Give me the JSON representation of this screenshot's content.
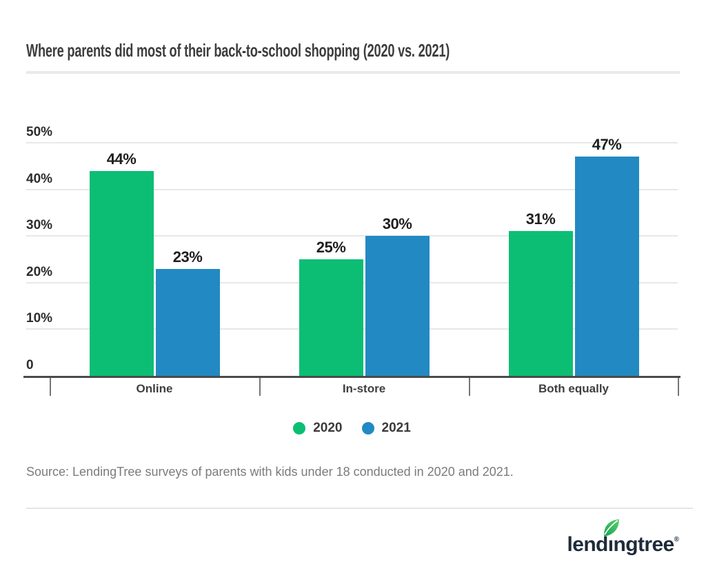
{
  "title": "Where parents did most of their back-to-school shopping (2020 vs. 2021)",
  "chart_data": {
    "type": "bar",
    "categories": [
      "Online",
      "In-store",
      "Both equally"
    ],
    "series": [
      {
        "name": "2020",
        "color": "#0cbe74",
        "values": [
          44,
          25,
          31
        ]
      },
      {
        "name": "2021",
        "color": "#2389c2",
        "values": [
          23,
          30,
          47
        ]
      }
    ],
    "value_suffix": "%",
    "ylim": [
      0,
      50
    ],
    "ytick_labels": [
      "50%",
      "40%",
      "30%",
      "20%",
      "10%",
      "0"
    ],
    "ytick_values": [
      50,
      40,
      30,
      20,
      10,
      0
    ],
    "grid": true,
    "legend_position": "bottom",
    "xlabel": "",
    "ylabel": ""
  },
  "legend": [
    {
      "label": "2020",
      "color": "#0cbe74"
    },
    {
      "label": "2021",
      "color": "#2389c2"
    }
  ],
  "source": "Source: LendingTree surveys of parents with kids under 18 conducted in 2020 and 2021.",
  "logo": {
    "text_before_i": "lend",
    "dotless_i": "ı",
    "text_after_i": "ngtree",
    "registered": "®",
    "text_color": "#1e2b3a",
    "leaf_color_dark": "#1da152",
    "leaf_color_light": "#55d46e"
  },
  "colors": {
    "green_2020": "#0cbe74",
    "blue_2021": "#2389c2",
    "gridline": "#e8e8e8",
    "axis": "#4a4a4a",
    "divider": "#e9e9e9"
  }
}
